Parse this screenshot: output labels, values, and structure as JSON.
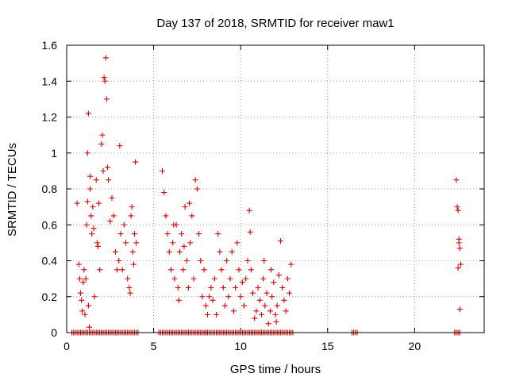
{
  "chart_data": {
    "type": "scatter",
    "title": "Day 137 of 2018, SRMTID for receiver maw1",
    "xlabel": "GPS time / hours",
    "ylabel": "SRMTID / TECUs",
    "xlim": [
      0,
      24
    ],
    "ylim": [
      0,
      1.6
    ],
    "grid": true,
    "x_ticks": [
      0,
      5,
      10,
      15,
      20
    ],
    "x_tick_labels": [
      "0",
      "5",
      "10",
      "15",
      "20"
    ],
    "y_ticks": [
      0,
      0.2,
      0.4,
      0.6,
      0.8,
      1.0,
      1.2,
      1.4,
      1.6
    ],
    "y_tick_labels": [
      "0",
      "0.2",
      "0.4",
      "0.6",
      "0.8",
      "1",
      "1.2",
      "1.4",
      "1.6"
    ],
    "marker": "+",
    "series": [
      {
        "name": "SRMTID",
        "color": "#dd0000",
        "points": [
          [
            0.6,
            0.72
          ],
          [
            0.7,
            0.38
          ],
          [
            0.75,
            0.3
          ],
          [
            0.8,
            0.22
          ],
          [
            0.85,
            0.18
          ],
          [
            0.9,
            0.12
          ],
          [
            0.95,
            0.28
          ],
          [
            1.0,
            0.35
          ],
          [
            1.05,
            0.1
          ],
          [
            1.1,
            0.3
          ],
          [
            1.15,
            0.6
          ],
          [
            1.2,
            0.73
          ],
          [
            1.25,
            0.15
          ],
          [
            1.3,
            0.03
          ],
          [
            1.35,
            0.8
          ],
          [
            1.4,
            0.65
          ],
          [
            1.45,
            0.55
          ],
          [
            1.5,
            0.7
          ],
          [
            1.55,
            0.58
          ],
          [
            1.6,
            0.2
          ],
          [
            1.7,
            0.85
          ],
          [
            1.75,
            0.5
          ],
          [
            1.8,
            0.48
          ],
          [
            1.85,
            0.72
          ],
          [
            1.9,
            0.35
          ],
          [
            1.2,
            1.0
          ],
          [
            1.25,
            1.22
          ],
          [
            1.35,
            0.87
          ],
          [
            2.0,
            1.05
          ],
          [
            2.05,
            1.1
          ],
          [
            2.1,
            0.9
          ],
          [
            2.15,
            1.42
          ],
          [
            2.2,
            1.4
          ],
          [
            2.25,
            1.53
          ],
          [
            2.3,
            1.3
          ],
          [
            2.35,
            0.92
          ],
          [
            2.4,
            0.85
          ],
          [
            2.5,
            0.62
          ],
          [
            2.6,
            0.75
          ],
          [
            2.7,
            0.65
          ],
          [
            2.8,
            0.45
          ],
          [
            2.9,
            0.35
          ],
          [
            3.0,
            0.4
          ],
          [
            3.05,
            1.04
          ],
          [
            3.1,
            0.55
          ],
          [
            3.2,
            0.35
          ],
          [
            3.3,
            0.6
          ],
          [
            3.4,
            0.5
          ],
          [
            3.5,
            0.3
          ],
          [
            3.6,
            0.25
          ],
          [
            3.7,
            0.65
          ],
          [
            3.8,
            0.45
          ],
          [
            3.9,
            0.55
          ],
          [
            4.0,
            0.5
          ],
          [
            3.95,
            0.95
          ],
          [
            3.85,
            0.38
          ],
          [
            3.75,
            0.7
          ],
          [
            3.65,
            0.22
          ],
          [
            5.5,
            0.9
          ],
          [
            5.6,
            0.78
          ],
          [
            5.7,
            0.65
          ],
          [
            5.8,
            0.55
          ],
          [
            5.9,
            0.45
          ],
          [
            6.0,
            0.35
          ],
          [
            6.1,
            0.5
          ],
          [
            6.2,
            0.3
          ],
          [
            6.3,
            0.6
          ],
          [
            6.4,
            0.25
          ],
          [
            6.5,
            0.45
          ],
          [
            6.6,
            0.55
          ],
          [
            6.7,
            0.35
          ],
          [
            6.8,
            0.7
          ],
          [
            6.9,
            0.4
          ],
          [
            7.0,
            0.25
          ],
          [
            7.1,
            0.5
          ],
          [
            7.2,
            0.65
          ],
          [
            7.3,
            0.3
          ],
          [
            7.4,
            0.85
          ],
          [
            7.5,
            0.8
          ],
          [
            7.6,
            0.55
          ],
          [
            7.7,
            0.4
          ],
          [
            7.8,
            0.2
          ],
          [
            7.9,
            0.35
          ],
          [
            6.15,
            0.6
          ],
          [
            6.45,
            0.18
          ],
          [
            6.75,
            0.48
          ],
          [
            7.05,
            0.72
          ],
          [
            8.0,
            0.15
          ],
          [
            8.1,
            0.1
          ],
          [
            8.2,
            0.2
          ],
          [
            8.3,
            0.25
          ],
          [
            8.4,
            0.18
          ],
          [
            8.5,
            0.3
          ],
          [
            8.6,
            0.1
          ],
          [
            8.7,
            0.55
          ],
          [
            8.8,
            0.45
          ],
          [
            8.9,
            0.35
          ],
          [
            9.0,
            0.25
          ],
          [
            9.1,
            0.15
          ],
          [
            9.2,
            0.4
          ],
          [
            9.3,
            0.2
          ],
          [
            9.4,
            0.3
          ],
          [
            9.5,
            0.45
          ],
          [
            9.6,
            0.12
          ],
          [
            9.7,
            0.25
          ],
          [
            9.8,
            0.5
          ],
          [
            9.9,
            0.35
          ],
          [
            10.0,
            0.2
          ],
          [
            10.1,
            0.28
          ],
          [
            10.2,
            0.15
          ],
          [
            10.3,
            0.3
          ],
          [
            10.4,
            0.4
          ],
          [
            10.5,
            0.68
          ],
          [
            10.55,
            0.56
          ],
          [
            10.6,
            0.35
          ],
          [
            10.7,
            0.22
          ],
          [
            10.8,
            0.08
          ],
          [
            10.9,
            0.12
          ],
          [
            11.0,
            0.25
          ],
          [
            11.1,
            0.18
          ],
          [
            11.2,
            0.1
          ],
          [
            11.3,
            0.3
          ],
          [
            11.4,
            0.15
          ],
          [
            11.5,
            0.22
          ],
          [
            11.6,
            0.05
          ],
          [
            11.7,
            0.12
          ],
          [
            11.8,
            0.2
          ],
          [
            11.9,
            0.28
          ],
          [
            12.0,
            0.1
          ],
          [
            12.1,
            0.15
          ],
          [
            12.2,
            0.32
          ],
          [
            12.3,
            0.51
          ],
          [
            12.4,
            0.25
          ],
          [
            12.5,
            0.18
          ],
          [
            12.6,
            0.12
          ],
          [
            12.7,
            0.3
          ],
          [
            12.8,
            0.22
          ],
          [
            12.9,
            0.38
          ],
          [
            11.35,
            0.4
          ],
          [
            11.75,
            0.35
          ],
          [
            12.05,
            0.06
          ],
          [
            22.4,
            0.85
          ],
          [
            22.45,
            0.7
          ],
          [
            22.5,
            0.68
          ],
          [
            22.55,
            0.5
          ],
          [
            22.6,
            0.47
          ],
          [
            22.65,
            0.38
          ],
          [
            22.5,
            0.36
          ],
          [
            22.6,
            0.13
          ],
          [
            22.55,
            0.52
          ]
        ]
      }
    ],
    "zero_clusters": [
      [
        0.3,
        0.9
      ],
      [
        1.0,
        2.0
      ],
      [
        2.0,
        4.1
      ],
      [
        5.3,
        8.0
      ],
      [
        8.0,
        10.5
      ],
      [
        10.5,
        13.0
      ],
      [
        16.4,
        16.7
      ],
      [
        22.3,
        22.6
      ]
    ]
  }
}
